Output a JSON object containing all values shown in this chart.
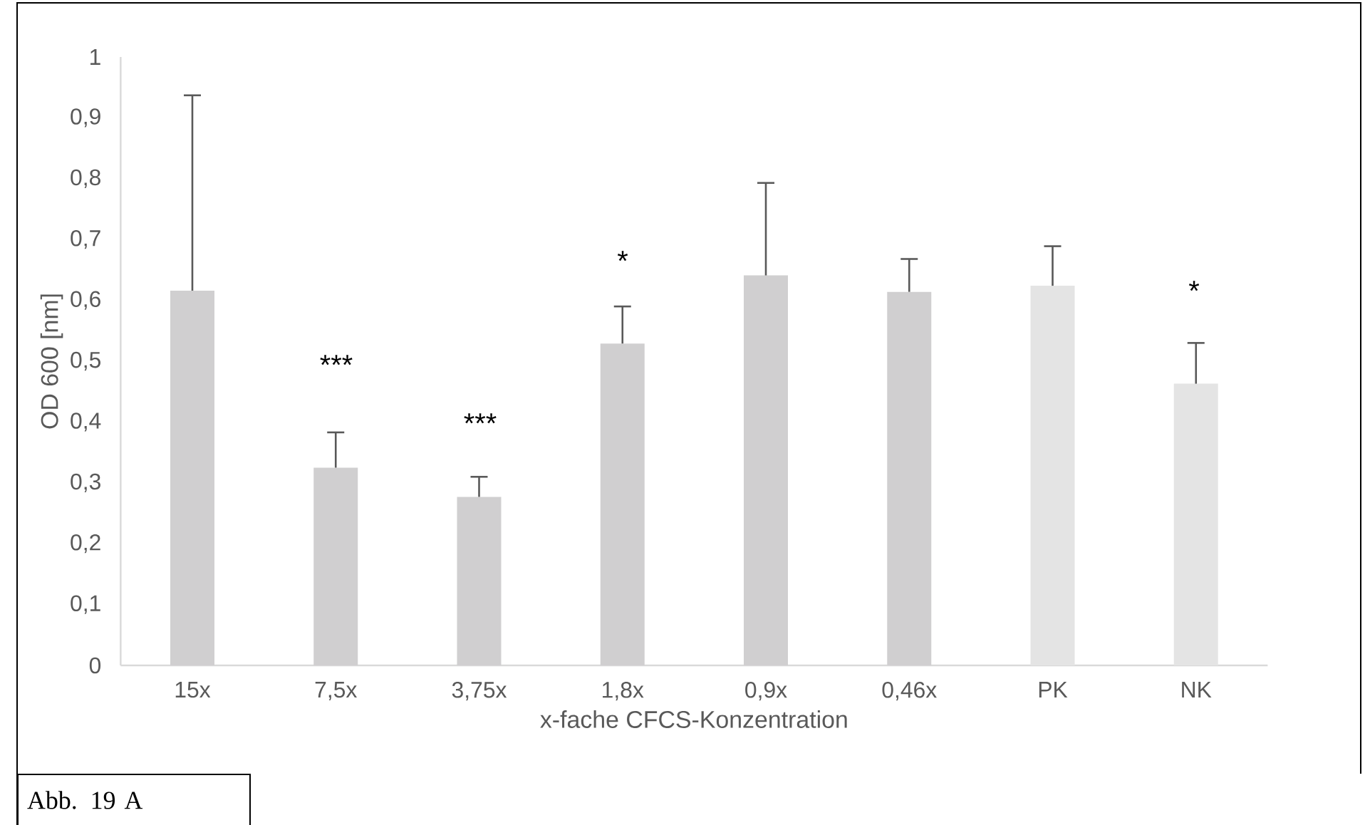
{
  "chart_data": {
    "type": "bar",
    "xlabel": "x-fache CFCS-Konzentration",
    "ylabel": "OD 600 [nm]",
    "categories": [
      "15x",
      "7,5x",
      "3,75x",
      "1,8x",
      "0,9x",
      "0,46x",
      "PK",
      "NK"
    ],
    "values": [
      0.616,
      0.325,
      0.277,
      0.529,
      0.641,
      0.614,
      0.624,
      0.463
    ],
    "colors": [
      "#d0cfd0",
      "#d0cfd0",
      "#d0cfd0",
      "#d0cfd0",
      "#d0cfd0",
      "#d0cfd0",
      "#e4e4e4",
      "#e4e4e4"
    ],
    "errors": [
      [
        0.616,
        0.937
      ],
      [
        0.325,
        0.383
      ],
      [
        0.277,
        0.31
      ],
      [
        0.529,
        0.59
      ],
      [
        0.641,
        0.793
      ],
      [
        0.614,
        0.668
      ],
      [
        0.624,
        0.689
      ],
      [
        0.463,
        0.53
      ]
    ],
    "ylim": [
      0,
      1
    ],
    "yticks": [
      0,
      {
        "value": 0.1,
        "label": "0,1"
      },
      {
        "value": 0.2,
        "label": "0,2"
      },
      {
        "value": 0.3,
        "label": "0,3"
      },
      {
        "value": 0.4,
        "label": "0,4"
      },
      {
        "value": 0.5,
        "label": "0,5"
      },
      {
        "value": 0.6,
        "label": "0,6"
      },
      {
        "value": 0.7,
        "label": "0,7"
      },
      {
        "value": 0.8,
        "label": "0,8"
      },
      {
        "value": 0.9,
        "label": "0,9"
      },
      1
    ],
    "grid": false,
    "annotations": [
      "***",
      "***",
      "*",
      "*",
      "Abb. 19 A"
    ]
  }
}
